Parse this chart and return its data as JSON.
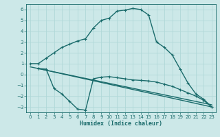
{
  "xlabel": "Humidex (Indice chaleur)",
  "bg_color": "#cce8e8",
  "grid_color": "#b0d8d8",
  "line_color": "#1a6b6b",
  "xlim": [
    -0.5,
    23.5
  ],
  "ylim": [
    -3.5,
    6.5
  ],
  "xticks": [
    0,
    1,
    2,
    3,
    4,
    5,
    6,
    7,
    8,
    9,
    10,
    11,
    12,
    13,
    14,
    15,
    16,
    17,
    18,
    19,
    20,
    21,
    22,
    23
  ],
  "yticks": [
    -3,
    -2,
    -1,
    0,
    1,
    2,
    3,
    4,
    5,
    6
  ],
  "line1_x": [
    0,
    1,
    2,
    3,
    4,
    5,
    6,
    7,
    8,
    9,
    10,
    11,
    12,
    13,
    14,
    15,
    16,
    17,
    18,
    19,
    20,
    21,
    22,
    23
  ],
  "line1_y": [
    1.0,
    1.0,
    1.5,
    2.0,
    2.5,
    2.8,
    3.1,
    3.3,
    4.3,
    5.0,
    5.2,
    5.85,
    5.95,
    6.1,
    6.0,
    5.5,
    3.0,
    2.5,
    1.8,
    0.5,
    -0.8,
    -1.8,
    -2.3,
    -3.0
  ],
  "line2_x": [
    1,
    2,
    3,
    4,
    5,
    6,
    7,
    8,
    9,
    10,
    11,
    12,
    13,
    14,
    15,
    16,
    17,
    18,
    19,
    20,
    21,
    22,
    23
  ],
  "line2_y": [
    0.55,
    0.5,
    -1.3,
    -1.8,
    -2.5,
    -3.2,
    -3.3,
    -0.4,
    -0.25,
    -0.2,
    -0.3,
    -0.4,
    -0.5,
    -0.55,
    -0.6,
    -0.7,
    -0.9,
    -1.1,
    -1.4,
    -1.7,
    -2.0,
    -2.4,
    -3.0
  ],
  "line3_x": [
    0,
    23
  ],
  "line3_y": [
    0.7,
    -2.8
  ],
  "line4_x": [
    1,
    23
  ],
  "line4_y": [
    0.55,
    -3.0
  ],
  "marker_size": 3,
  "line_width": 1.0
}
